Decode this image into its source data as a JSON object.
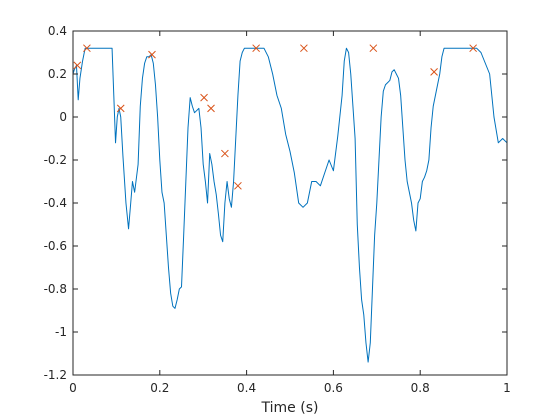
{
  "chart_data": {
    "type": "line",
    "title": "",
    "xlabel": "Time (s)",
    "ylabel": "",
    "xlim": [
      0,
      1
    ],
    "ylim": [
      -1.2,
      0.4
    ],
    "grid": false,
    "legend": false,
    "xticks": [
      0,
      0.2,
      0.4,
      0.6,
      0.8,
      1
    ],
    "xtick_labels": [
      "0",
      "0.2",
      "0.4",
      "0.6",
      "0.8",
      "1"
    ],
    "yticks": [
      -1.2,
      -1,
      -0.8,
      -0.6,
      -0.4,
      -0.2,
      0,
      0.2,
      0.4
    ],
    "ytick_labels": [
      "-1.2",
      "-1",
      "-0.8",
      "-0.6",
      "-0.4",
      "-0.2",
      "0",
      "0.2",
      "0.4"
    ],
    "colors": {
      "line": "#0072BD",
      "marker": "#D95319",
      "axes": "#262626"
    },
    "series": [
      {
        "kind": "line",
        "x": [
          0.0,
          0.003,
          0.008,
          0.012,
          0.016,
          0.022,
          0.028,
          0.032,
          0.04,
          0.055,
          0.075,
          0.09,
          0.094,
          0.098,
          0.102,
          0.106,
          0.11,
          0.115,
          0.122,
          0.128,
          0.133,
          0.137,
          0.142,
          0.15,
          0.155,
          0.16,
          0.165,
          0.17,
          0.175,
          0.18,
          0.185,
          0.19,
          0.195,
          0.2,
          0.205,
          0.21,
          0.215,
          0.22,
          0.225,
          0.23,
          0.235,
          0.24,
          0.245,
          0.25,
          0.255,
          0.26,
          0.265,
          0.27,
          0.275,
          0.28,
          0.285,
          0.29,
          0.295,
          0.3,
          0.305,
          0.31,
          0.315,
          0.32,
          0.325,
          0.33,
          0.335,
          0.34,
          0.345,
          0.35,
          0.355,
          0.36,
          0.365,
          0.37,
          0.375,
          0.38,
          0.385,
          0.39,
          0.395,
          0.4,
          0.405,
          0.41,
          0.415,
          0.42,
          0.43,
          0.44,
          0.45,
          0.46,
          0.47,
          0.48,
          0.49,
          0.5,
          0.51,
          0.52,
          0.53,
          0.54,
          0.55,
          0.56,
          0.57,
          0.58,
          0.59,
          0.6,
          0.61,
          0.62,
          0.625,
          0.63,
          0.635,
          0.64,
          0.645,
          0.65,
          0.655,
          0.66,
          0.665,
          0.67,
          0.675,
          0.68,
          0.685,
          0.69,
          0.695,
          0.7,
          0.705,
          0.71,
          0.715,
          0.72,
          0.725,
          0.73,
          0.735,
          0.74,
          0.745,
          0.75,
          0.755,
          0.76,
          0.765,
          0.77,
          0.775,
          0.78,
          0.785,
          0.79,
          0.795,
          0.8,
          0.805,
          0.81,
          0.815,
          0.82,
          0.825,
          0.83,
          0.835,
          0.84,
          0.845,
          0.85,
          0.855,
          0.86,
          0.865,
          0.87,
          0.875,
          0.88,
          0.885,
          0.89,
          0.895,
          0.9,
          0.905,
          0.91,
          0.915,
          0.92,
          0.93,
          0.94,
          0.95,
          0.96,
          0.97,
          0.98,
          0.99,
          1.0
        ],
        "y": [
          0.2,
          0.22,
          0.24,
          0.08,
          0.18,
          0.26,
          0.32,
          0.32,
          0.32,
          0.32,
          0.32,
          0.32,
          0.1,
          -0.12,
          0.0,
          0.04,
          0.0,
          -0.18,
          -0.4,
          -0.52,
          -0.4,
          -0.3,
          -0.35,
          -0.22,
          0.05,
          0.18,
          0.25,
          0.28,
          0.28,
          0.29,
          0.25,
          0.15,
          0.0,
          -0.2,
          -0.35,
          -0.4,
          -0.55,
          -0.7,
          -0.82,
          -0.88,
          -0.89,
          -0.85,
          -0.8,
          -0.79,
          -0.55,
          -0.3,
          -0.05,
          0.09,
          0.05,
          0.02,
          0.03,
          0.04,
          -0.05,
          -0.22,
          -0.3,
          -0.4,
          -0.17,
          -0.22,
          -0.3,
          -0.36,
          -0.45,
          -0.55,
          -0.58,
          -0.4,
          -0.3,
          -0.38,
          -0.42,
          -0.3,
          -0.1,
          0.1,
          0.26,
          0.3,
          0.32,
          0.32,
          0.32,
          0.32,
          0.32,
          0.32,
          0.32,
          0.32,
          0.28,
          0.2,
          0.1,
          0.04,
          -0.08,
          -0.16,
          -0.26,
          -0.4,
          -0.42,
          -0.4,
          -0.3,
          -0.3,
          -0.32,
          -0.26,
          -0.2,
          -0.25,
          -0.09,
          0.1,
          0.26,
          0.32,
          0.3,
          0.2,
          0.05,
          -0.1,
          -0.5,
          -0.7,
          -0.85,
          -0.92,
          -1.05,
          -1.14,
          -1.05,
          -0.8,
          -0.55,
          -0.4,
          -0.2,
          0.0,
          0.12,
          0.15,
          0.16,
          0.17,
          0.21,
          0.22,
          0.2,
          0.18,
          0.1,
          -0.05,
          -0.2,
          -0.3,
          -0.35,
          -0.4,
          -0.48,
          -0.53,
          -0.4,
          -0.38,
          -0.3,
          -0.28,
          -0.25,
          -0.2,
          -0.05,
          0.05,
          0.1,
          0.15,
          0.2,
          0.28,
          0.32,
          0.32,
          0.32,
          0.32,
          0.32,
          0.32,
          0.32,
          0.32,
          0.32,
          0.32,
          0.32,
          0.32,
          0.32,
          0.32,
          0.32,
          0.3,
          0.25,
          0.2,
          0.0,
          -0.12,
          -0.1,
          -0.12
        ]
      },
      {
        "kind": "peaks",
        "x": [
          0.01,
          0.032,
          0.11,
          0.182,
          0.302,
          0.318,
          0.35,
          0.38,
          0.422,
          0.532,
          0.692,
          0.832,
          0.922
        ],
        "y": [
          0.24,
          0.32,
          0.04,
          0.29,
          0.09,
          0.04,
          -0.17,
          -0.32,
          0.32,
          0.32,
          0.32,
          0.21,
          0.32
        ]
      }
    ]
  }
}
